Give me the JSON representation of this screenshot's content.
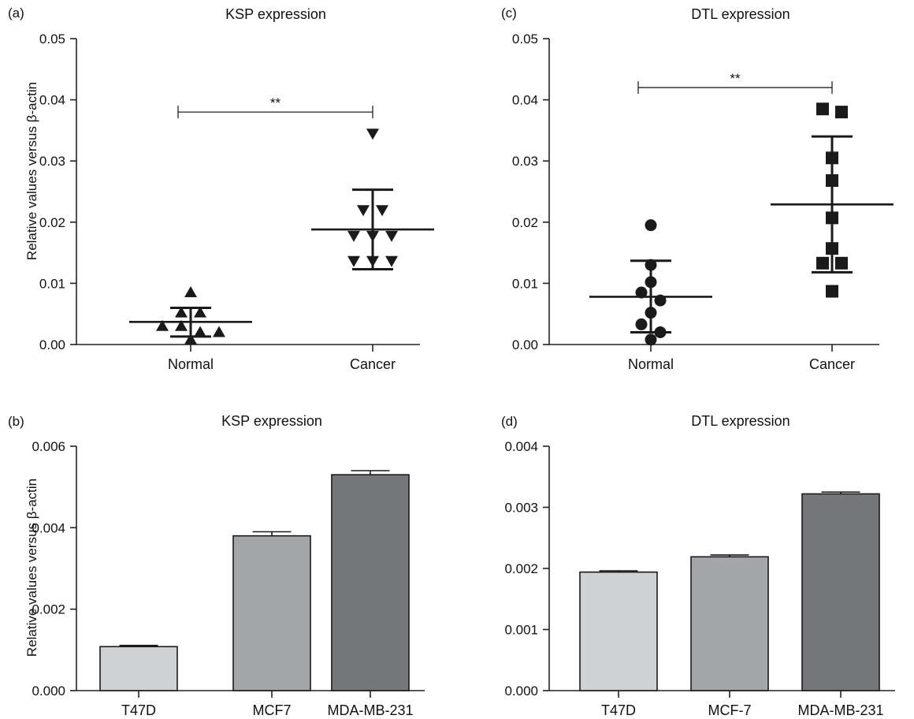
{
  "chart_data": [
    {
      "id": "a",
      "panel_label": "(a)",
      "type": "scatter",
      "title": "KSP expression",
      "xlabel": "",
      "ylabel": "Relative values versus β-actin",
      "ylim": [
        0,
        0.05
      ],
      "yticks": [
        "0.00",
        "0.01",
        "0.02",
        "0.03",
        "0.04",
        "0.05"
      ],
      "categories": [
        "Normal",
        "Cancer"
      ],
      "marker_color": "#1a1a1a",
      "series": [
        {
          "category": "Normal",
          "marker": "triangle-up",
          "points": [
            0.0085,
            0.0052,
            0.0052,
            0.003,
            0.003,
            0.002,
            0.002,
            0.0008
          ],
          "mean": 0.0037,
          "sd_low": 0.0013,
          "sd_high": 0.006
        },
        {
          "category": "Cancer",
          "marker": "triangle-down",
          "points": [
            0.0345,
            0.022,
            0.022,
            0.0178,
            0.0178,
            0.0178,
            0.0137,
            0.0137,
            0.0137
          ],
          "mean": 0.0188,
          "sd_low": 0.0123,
          "sd_high": 0.0253
        }
      ],
      "annotations": [
        {
          "text": "**",
          "y": 0.038
        }
      ]
    },
    {
      "id": "b",
      "panel_label": "(b)",
      "type": "bar",
      "title": "KSP expression",
      "xlabel": "",
      "ylabel": "Relative values versus β-actin",
      "ylim": [
        0,
        0.006
      ],
      "yticks": [
        "0.000",
        "0.002",
        "0.004",
        "0.006"
      ],
      "categories": [
        "T47D",
        "MCF7",
        "MDA-MB-231"
      ],
      "values": [
        0.00108,
        0.0038,
        0.0053
      ],
      "errors": [
        3e-05,
        0.0001,
        0.0001
      ],
      "colors": [
        "#cfd1d4",
        "#a4a6aa",
        "#75777b"
      ]
    },
    {
      "id": "c",
      "panel_label": "(c)",
      "type": "scatter",
      "title": "DTL expression",
      "xlabel": "",
      "ylabel": "",
      "ylim": [
        0,
        0.05
      ],
      "yticks": [
        "0.00",
        "0.01",
        "0.02",
        "0.03",
        "0.04",
        "0.05"
      ],
      "categories": [
        "Normal",
        "Cancer"
      ],
      "marker_color": "#1a1a1a",
      "series": [
        {
          "category": "Normal",
          "marker": "circle",
          "points": [
            0.0195,
            0.013,
            0.0102,
            0.0085,
            0.0072,
            0.0052,
            0.0033,
            0.002,
            0.0008
          ],
          "mean": 0.0078,
          "sd_low": 0.002,
          "sd_high": 0.0137
        },
        {
          "category": "Cancer",
          "marker": "square",
          "points": [
            0.0385,
            0.038,
            0.0305,
            0.0268,
            0.0207,
            0.0157,
            0.0133,
            0.0133,
            0.0087
          ],
          "mean": 0.0229,
          "sd_low": 0.0118,
          "sd_high": 0.034
        }
      ],
      "annotations": [
        {
          "text": "**",
          "y": 0.042
        }
      ]
    },
    {
      "id": "d",
      "panel_label": "(d)",
      "type": "bar",
      "title": "DTL expression",
      "xlabel": "",
      "ylabel": "",
      "ylim": [
        0,
        0.004
      ],
      "yticks": [
        "0.000",
        "0.001",
        "0.002",
        "0.003",
        "0.004"
      ],
      "categories": [
        "T47D",
        "MCF-7",
        "MDA-MB-231"
      ],
      "values": [
        0.00194,
        0.00219,
        0.00322
      ],
      "errors": [
        2e-05,
        3e-05,
        3e-05
      ],
      "colors": [
        "#cfd1d4",
        "#a4a6aa",
        "#75777b"
      ]
    }
  ]
}
